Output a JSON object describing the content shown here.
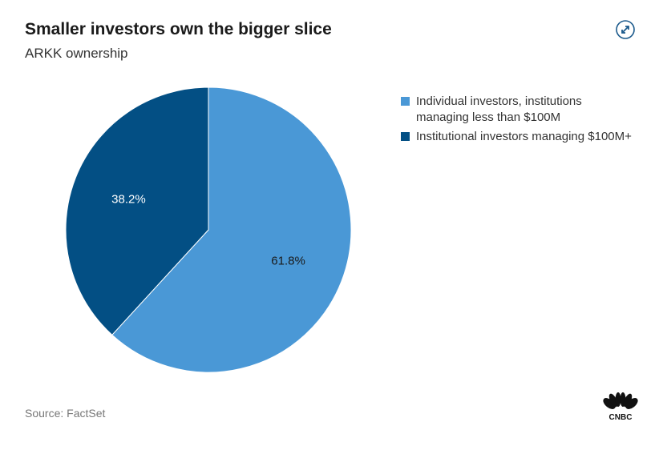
{
  "header": {
    "title": "Smaller investors own the bigger slice",
    "subtitle": "ARKK ownership",
    "expand_icon": "expand-arrows-icon"
  },
  "footer": {
    "source": "Source: FactSet",
    "logo": "CNBC"
  },
  "chart_data": {
    "type": "pie",
    "title": "Smaller investors own the bigger slice",
    "subtitle": "ARKK ownership",
    "legend_position": "right",
    "slices": [
      {
        "name": "Individual investors, institutions managing less than $100M",
        "value": 61.8,
        "label": "61.8%",
        "color": "#4a98d6"
      },
      {
        "name": "Institutional investors managing $100M+",
        "value": 38.2,
        "label": "38.2%",
        "color": "#034f84"
      }
    ]
  }
}
